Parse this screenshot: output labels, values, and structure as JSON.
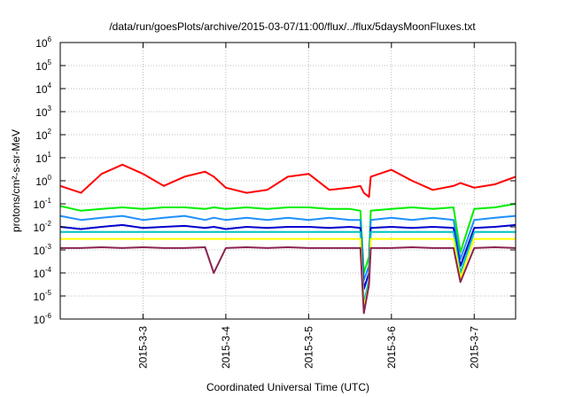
{
  "chart_data": {
    "type": "line",
    "title": "/data/run/goesPlots/archive/2015-03-07/11:00/flux/../flux/5daysMoonFluxes.txt",
    "xlabel": "Coordinated Universal Time (UTC)",
    "ylabel": "protons/cm²-s-sr-MeV",
    "y_scale": "log",
    "xlim": [
      "2015-03-02T00:00",
      "2015-03-07T12:00"
    ],
    "ylim": [
      1e-06,
      1000000.0
    ],
    "x_ticks": [
      "2015-3-3",
      "2015-3-4",
      "2015-3-5",
      "2015-3-6",
      "2015-3-7"
    ],
    "y_tick_exponents": [
      -6,
      -5,
      -4,
      -3,
      -2,
      -1,
      0,
      1,
      2,
      3,
      4,
      5,
      6
    ],
    "grid": true,
    "legend": "none",
    "x": [
      "2015-03-02T00:00",
      "2015-03-02T06:00",
      "2015-03-02T12:00",
      "2015-03-02T18:00",
      "2015-03-03T00:00",
      "2015-03-03T06:00",
      "2015-03-03T12:00",
      "2015-03-03T18:00",
      "2015-03-03T20:30",
      "2015-03-04T00:00",
      "2015-03-04T06:00",
      "2015-03-04T12:00",
      "2015-03-04T18:00",
      "2015-03-05T00:00",
      "2015-03-05T06:00",
      "2015-03-05T12:00",
      "2015-03-05T15:00",
      "2015-03-05T16:00",
      "2015-03-05T17:30",
      "2015-03-05T18:00",
      "2015-03-06T00:00",
      "2015-03-06T06:00",
      "2015-03-06T12:00",
      "2015-03-06T18:00",
      "2015-03-06T20:00",
      "2015-03-07T00:00",
      "2015-03-07T06:00",
      "2015-03-07T12:00"
    ],
    "series": [
      {
        "color": "#ff0000",
        "values": [
          0.6,
          0.3,
          2.0,
          5.0,
          2.0,
          0.6,
          1.5,
          2.5,
          1.5,
          0.5,
          0.3,
          0.4,
          1.5,
          2.0,
          0.4,
          0.5,
          0.6,
          0.3,
          0.2,
          1.5,
          3.0,
          1.0,
          0.4,
          0.6,
          0.8,
          0.5,
          0.7,
          1.5
        ]
      },
      {
        "color": "#00ee00",
        "values": [
          0.08,
          0.05,
          0.06,
          0.07,
          0.06,
          0.07,
          0.07,
          0.06,
          0.07,
          0.06,
          0.07,
          0.06,
          0.07,
          0.07,
          0.06,
          0.06,
          0.05,
          0.0001,
          0.0005,
          0.05,
          0.06,
          0.07,
          0.06,
          0.07,
          0.0008,
          0.06,
          0.07,
          0.1
        ]
      },
      {
        "color": "#1e90ff",
        "values": [
          0.03,
          0.02,
          0.025,
          0.03,
          0.02,
          0.025,
          0.03,
          0.02,
          0.025,
          0.02,
          0.025,
          0.02,
          0.025,
          0.02,
          0.025,
          0.02,
          0.02,
          5e-05,
          0.0002,
          0.02,
          0.025,
          0.02,
          0.025,
          0.02,
          0.0004,
          0.02,
          0.025,
          0.03
        ]
      },
      {
        "color": "#0000cd",
        "values": [
          0.01,
          0.008,
          0.01,
          0.012,
          0.009,
          0.01,
          0.011,
          0.009,
          0.01,
          0.008,
          0.01,
          0.009,
          0.01,
          0.01,
          0.009,
          0.01,
          0.009,
          2e-05,
          0.0001,
          0.009,
          0.01,
          0.009,
          0.01,
          0.009,
          0.0002,
          0.009,
          0.01,
          0.012
        ]
      },
      {
        "color": "#00c0c0",
        "values": [
          0.006,
          0.006,
          0.006,
          0.006,
          0.006,
          0.006,
          0.006,
          0.006,
          0.006,
          0.006,
          0.006,
          0.006,
          0.006,
          0.006,
          0.006,
          0.006,
          0.006,
          5e-06,
          5e-05,
          0.006,
          0.006,
          0.006,
          0.006,
          0.006,
          0.0001,
          0.006,
          0.006,
          0.006
        ]
      },
      {
        "color": "#ffff00",
        "values": [
          0.003,
          0.003,
          0.003,
          0.003,
          0.003,
          0.003,
          0.003,
          0.003,
          0.003,
          0.003,
          0.003,
          0.003,
          0.003,
          0.003,
          0.003,
          0.003,
          0.003,
          3e-06,
          3e-05,
          0.003,
          0.003,
          0.003,
          0.003,
          0.003,
          6e-05,
          0.003,
          0.003,
          0.003
        ]
      },
      {
        "color": "#8b2252",
        "values": [
          0.0012,
          0.0012,
          0.0013,
          0.0012,
          0.0013,
          0.0012,
          0.0012,
          0.0013,
          0.0001,
          0.0012,
          0.0013,
          0.0012,
          0.0013,
          0.0012,
          0.0012,
          0.0012,
          0.0012,
          1.8e-06,
          3e-05,
          0.0012,
          0.0012,
          0.0013,
          0.0012,
          0.0012,
          4e-05,
          0.0012,
          0.0013,
          0.0012
        ]
      }
    ]
  }
}
